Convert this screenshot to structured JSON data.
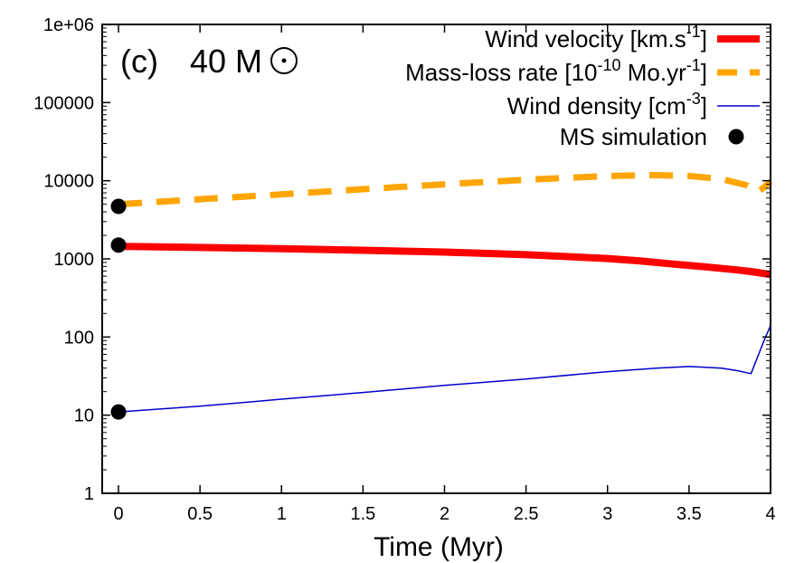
{
  "chart_data": {
    "type": "line",
    "panel_label": "(c)",
    "mass_label": "40 M",
    "sun_symbol": "⊙",
    "xlabel": "Time (Myr)",
    "ylabel": "",
    "xlim": [
      -0.1,
      4
    ],
    "ylim": [
      1,
      1000000
    ],
    "yscale": "log",
    "x_ticks": [
      0,
      0.5,
      1,
      1.5,
      2,
      2.5,
      3,
      3.5,
      4
    ],
    "x_tick_labels": [
      "0",
      "0.5",
      "1",
      "1.5",
      "2",
      "2.5",
      "3",
      "3.5",
      "4"
    ],
    "y_ticks": [
      1,
      10,
      100,
      1000,
      10000,
      100000,
      1000000
    ],
    "y_tick_labels": [
      "1",
      "10",
      "100",
      "1000",
      "10000",
      "100000",
      "1e+06"
    ],
    "legend_position": "top-right",
    "grid": false,
    "series": [
      {
        "name": "Wind velocity [km.s-1]",
        "legend_main": "Wind velocity [km.s",
        "legend_sup": "-1",
        "legend_end": "]",
        "color": "#ff0000",
        "style": "thick-solid",
        "x": [
          0,
          0.5,
          1,
          1.5,
          2,
          2.5,
          3,
          3.2,
          3.4,
          3.6,
          3.8,
          3.9,
          4.0
        ],
        "y": [
          1450,
          1400,
          1350,
          1290,
          1220,
          1130,
          1010,
          940,
          860,
          790,
          720,
          680,
          630
        ]
      },
      {
        "name": "Mass-loss rate [10-10 Mo.yr-1]",
        "legend_main": "Mass-loss rate [10",
        "legend_sup": "-10",
        "legend_mid": " Mo.yr",
        "legend_sup2": "-1",
        "legend_end": "]",
        "color": "#ffa500",
        "style": "thick-dashed",
        "x": [
          0,
          0.5,
          1,
          1.5,
          2,
          2.5,
          3,
          3.3,
          3.5,
          3.7,
          3.85,
          3.92,
          3.96,
          4.0
        ],
        "y": [
          5000,
          5800,
          6700,
          7800,
          9000,
          10300,
          11500,
          11800,
          11500,
          10500,
          8800,
          7200,
          8200,
          9800
        ]
      },
      {
        "name": "Wind density [cm-3]",
        "legend_main": "Wind density [cm",
        "legend_sup": "-3",
        "legend_end": "]",
        "color": "#0000cc",
        "style": "thin-solid",
        "x": [
          0,
          0.5,
          1,
          1.5,
          2,
          2.5,
          3,
          3.3,
          3.5,
          3.7,
          3.8,
          3.88,
          3.92,
          3.96,
          4.0
        ],
        "y": [
          11,
          13,
          16,
          19.5,
          24,
          29,
          36,
          40,
          42,
          40,
          37,
          34,
          55,
          90,
          140
        ]
      },
      {
        "name": "MS simulation",
        "legend_main": "MS simulation",
        "color": "#000000",
        "style": "points",
        "x": [
          0,
          0,
          0
        ],
        "y": [
          4700,
          1500,
          11
        ]
      }
    ]
  }
}
